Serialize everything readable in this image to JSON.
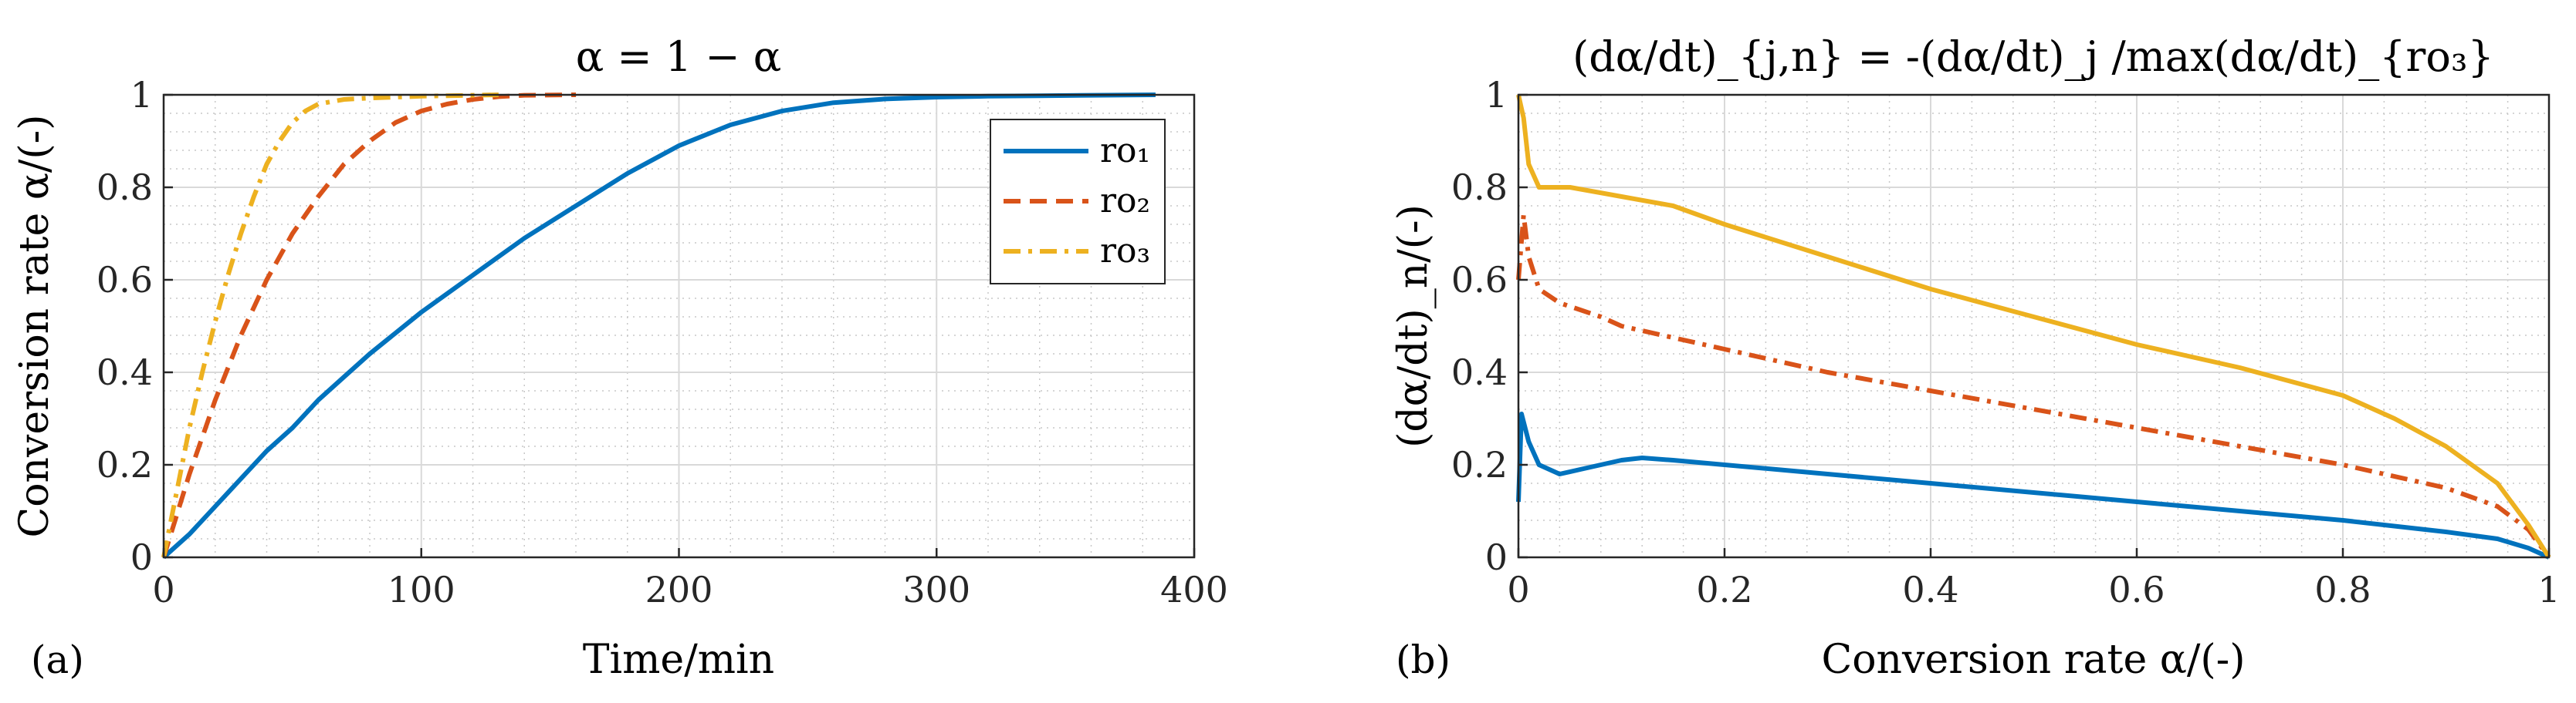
{
  "chart_data": [
    {
      "type": "line",
      "panel_label": "(a)",
      "title": "α = 1 − α",
      "xlabel": "Time/min",
      "ylabel": "Conversion rate α/(-)",
      "xlim": [
        0,
        400
      ],
      "ylim": [
        0,
        1
      ],
      "xticks": [
        "0",
        "100",
        "200",
        "300",
        "400"
      ],
      "yticks": [
        "0",
        "0.2",
        "0.4",
        "0.6",
        "0.8",
        "1"
      ],
      "grid": true,
      "legend_position": "top-right",
      "series": [
        {
          "name": "ro₁",
          "color": "#0072BD",
          "dash": "solid",
          "x": [
            0,
            10,
            20,
            30,
            40,
            50,
            60,
            70,
            80,
            100,
            120,
            140,
            160,
            180,
            200,
            220,
            240,
            260,
            280,
            300,
            320,
            340,
            360,
            385
          ],
          "y": [
            0,
            0.05,
            0.11,
            0.17,
            0.23,
            0.28,
            0.34,
            0.39,
            0.44,
            0.53,
            0.61,
            0.69,
            0.76,
            0.83,
            0.89,
            0.935,
            0.965,
            0.983,
            0.991,
            0.995,
            0.997,
            0.998,
            0.999,
            1.0
          ]
        },
        {
          "name": "ro₂",
          "color": "#D95319",
          "dash": "dashed",
          "x": [
            0,
            5,
            10,
            20,
            30,
            40,
            50,
            60,
            70,
            80,
            90,
            100,
            110,
            120,
            130,
            140,
            160
          ],
          "y": [
            0,
            0.09,
            0.18,
            0.34,
            0.48,
            0.6,
            0.7,
            0.78,
            0.85,
            0.9,
            0.94,
            0.965,
            0.98,
            0.99,
            0.996,
            0.999,
            1.0
          ]
        },
        {
          "name": "ro₃",
          "color": "#EDB120",
          "dash": "dashdot",
          "x": [
            0,
            5,
            10,
            15,
            20,
            25,
            30,
            35,
            40,
            45,
            50,
            55,
            60,
            65,
            70,
            80,
            90,
            100,
            110,
            120,
            130
          ],
          "y": [
            0,
            0.14,
            0.28,
            0.4,
            0.51,
            0.61,
            0.7,
            0.78,
            0.85,
            0.9,
            0.94,
            0.965,
            0.98,
            0.985,
            0.99,
            0.993,
            0.995,
            0.997,
            0.998,
            0.999,
            1.0
          ]
        }
      ]
    },
    {
      "type": "line",
      "panel_label": "(b)",
      "title": "(dα/dt)_{j,n} = -(dα/dt)_j /max(dα/dt)_{ro₃}",
      "xlabel": "Conversion rate α/(-)",
      "ylabel": "(dα/dt)_n/(-)",
      "xlim": [
        0,
        1
      ],
      "ylim": [
        0,
        1
      ],
      "xticks": [
        "0",
        "0.2",
        "0.4",
        "0.6",
        "0.8",
        "1"
      ],
      "yticks": [
        "0",
        "0.2",
        "0.4",
        "0.6",
        "0.8",
        "1"
      ],
      "grid": true,
      "series": [
        {
          "name": "ro₁",
          "color": "#0072BD",
          "dash": "solid",
          "x": [
            0,
            0.003,
            0.01,
            0.02,
            0.04,
            0.06,
            0.08,
            0.1,
            0.12,
            0.15,
            0.2,
            0.3,
            0.4,
            0.5,
            0.6,
            0.7,
            0.8,
            0.9,
            0.95,
            0.98,
            1.0
          ],
          "y": [
            0.12,
            0.31,
            0.25,
            0.2,
            0.18,
            0.19,
            0.2,
            0.21,
            0.215,
            0.21,
            0.2,
            0.18,
            0.16,
            0.14,
            0.12,
            0.1,
            0.08,
            0.055,
            0.04,
            0.02,
            0.0
          ]
        },
        {
          "name": "ro₂",
          "color": "#D95319",
          "dash": "dashdot",
          "x": [
            0,
            0.005,
            0.01,
            0.02,
            0.04,
            0.08,
            0.1,
            0.2,
            0.3,
            0.4,
            0.5,
            0.6,
            0.7,
            0.8,
            0.9,
            0.95,
            0.98,
            1.0
          ],
          "y": [
            0.6,
            0.74,
            0.65,
            0.58,
            0.55,
            0.52,
            0.5,
            0.45,
            0.4,
            0.36,
            0.32,
            0.28,
            0.24,
            0.2,
            0.15,
            0.11,
            0.06,
            0.0
          ]
        },
        {
          "name": "ro₃",
          "color": "#EDB120",
          "dash": "solid",
          "x": [
            0,
            0.005,
            0.01,
            0.02,
            0.05,
            0.1,
            0.15,
            0.2,
            0.3,
            0.4,
            0.5,
            0.6,
            0.7,
            0.8,
            0.85,
            0.9,
            0.95,
            0.98,
            1.0
          ],
          "y": [
            1.0,
            0.95,
            0.85,
            0.8,
            0.8,
            0.78,
            0.76,
            0.72,
            0.65,
            0.58,
            0.52,
            0.46,
            0.41,
            0.35,
            0.3,
            0.24,
            0.16,
            0.07,
            0.0
          ]
        }
      ]
    }
  ]
}
